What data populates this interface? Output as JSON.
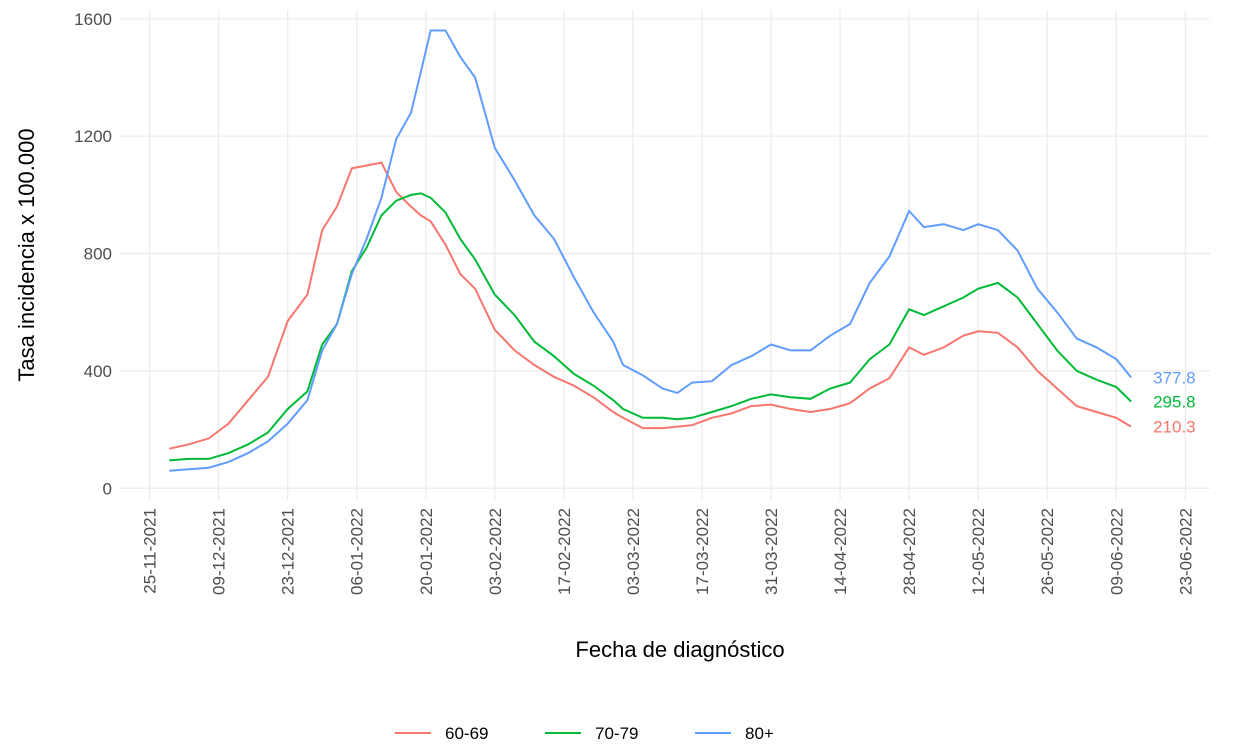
{
  "chart_data": {
    "type": "line",
    "x_label": "Fecha de diagnóstico",
    "y_label": "Tasa incidencia x 100.000",
    "x": [
      "29-11-2021",
      "03-12-2021",
      "07-12-2021",
      "11-12-2021",
      "15-12-2021",
      "19-12-2021",
      "23-12-2021",
      "27-12-2021",
      "30-12-2021",
      "02-01-2022",
      "05-01-2022",
      "08-01-2022",
      "11-01-2022",
      "14-01-2022",
      "17-01-2022",
      "19-01-2022",
      "21-01-2022",
      "24-01-2022",
      "27-01-2022",
      "30-01-2022",
      "03-02-2022",
      "07-02-2022",
      "11-02-2022",
      "15-02-2022",
      "19-02-2022",
      "23-02-2022",
      "27-02-2022",
      "01-03-2022",
      "05-03-2022",
      "09-03-2022",
      "12-03-2022",
      "15-03-2022",
      "19-03-2022",
      "23-03-2022",
      "27-03-2022",
      "31-03-2022",
      "04-04-2022",
      "08-04-2022",
      "12-04-2022",
      "16-04-2022",
      "20-04-2022",
      "24-04-2022",
      "28-04-2022",
      "01-05-2022",
      "05-05-2022",
      "09-05-2022",
      "12-05-2022",
      "16-05-2022",
      "20-05-2022",
      "24-05-2022",
      "28-05-2022",
      "01-06-2022",
      "05-06-2022",
      "09-06-2022",
      "12-06-2022"
    ],
    "series": [
      {
        "name": "60-69",
        "color": "#f8766d",
        "values": [
          135,
          150,
          170,
          220,
          300,
          380,
          570,
          660,
          880,
          960,
          1090,
          1100,
          1110,
          1010,
          960,
          930,
          910,
          830,
          730,
          680,
          540,
          470,
          420,
          380,
          350,
          310,
          260,
          240,
          205,
          205,
          210,
          215,
          240,
          255,
          280,
          285,
          270,
          260,
          270,
          290,
          340,
          375,
          480,
          455,
          480,
          520,
          535,
          530,
          480,
          400,
          340,
          280,
          260,
          240,
          210.3
        ]
      },
      {
        "name": "70-79",
        "color": "#00ba38",
        "values": [
          95,
          100,
          100,
          120,
          150,
          190,
          270,
          330,
          490,
          560,
          740,
          820,
          930,
          980,
          1000,
          1005,
          990,
          940,
          850,
          780,
          660,
          590,
          500,
          450,
          390,
          350,
          300,
          270,
          240,
          240,
          235,
          240,
          260,
          280,
          305,
          320,
          310,
          305,
          340,
          360,
          440,
          490,
          610,
          590,
          620,
          650,
          680,
          700,
          650,
          560,
          470,
          400,
          370,
          345,
          295.8
        ]
      },
      {
        "name": "80+",
        "color": "#619cff",
        "values": [
          60,
          65,
          70,
          90,
          120,
          160,
          220,
          300,
          470,
          560,
          730,
          850,
          990,
          1190,
          1280,
          1420,
          1560,
          1560,
          1470,
          1400,
          1160,
          1050,
          930,
          850,
          720,
          600,
          500,
          420,
          385,
          340,
          325,
          360,
          365,
          420,
          450,
          490,
          470,
          470,
          520,
          560,
          700,
          790,
          945,
          890,
          900,
          880,
          900,
          880,
          810,
          680,
          600,
          510,
          480,
          440,
          377.8
        ]
      }
    ],
    "xlim": [
      "19-11-2021",
      "28-06-2022"
    ],
    "xticks": [
      "25-11-2021",
      "09-12-2021",
      "23-12-2021",
      "06-01-2022",
      "20-01-2022",
      "03-02-2022",
      "17-02-2022",
      "03-03-2022",
      "17-03-2022",
      "31-03-2022",
      "14-04-2022",
      "28-04-2022",
      "12-05-2022",
      "26-05-2022",
      "09-06-2022",
      "23-06-2022"
    ],
    "ylim": [
      -40,
      1630
    ],
    "yticks": [
      0,
      400,
      800,
      1200,
      1600
    ],
    "grid": true,
    "legend": "bottom"
  }
}
